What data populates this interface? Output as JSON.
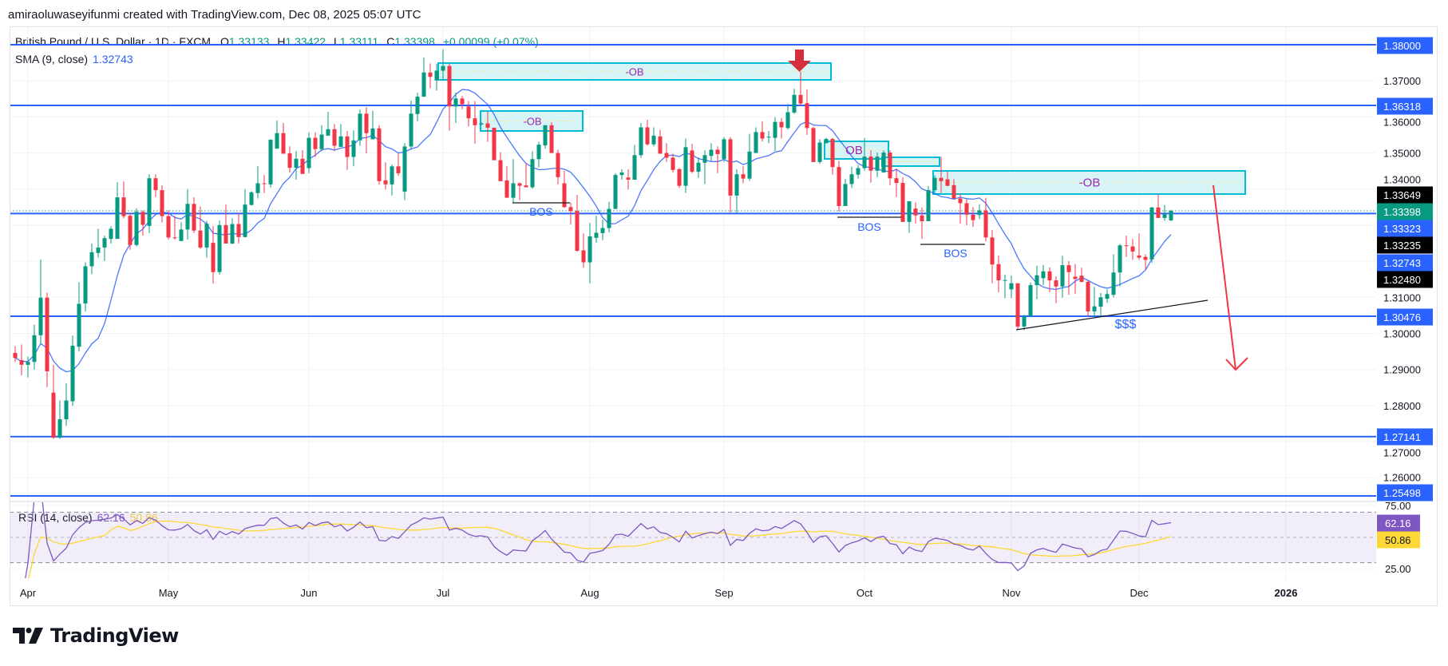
{
  "header": {
    "attribution": "amiraoluwaseyifunmi created with TradingView.com, Dec 08, 2025 05:07 UTC"
  },
  "legend": {
    "symbol": "British Pound / U.S. Dollar · 1D · FXCM",
    "open_label": "O",
    "open": "1.33133",
    "high_label": "H",
    "high": "1.33422",
    "low_label": "L",
    "low": "1.33111",
    "close_label": "C",
    "close": "1.33398",
    "change": "+0.00099 (+0.07%)",
    "sma_label": "SMA (9, close)",
    "sma_value": "1.32743"
  },
  "rsi_legend": {
    "label": "RSI (14, close)",
    "rsi": "62.16",
    "rsi_ma": "50.86"
  },
  "price_axis": {
    "ticks": [
      "1.37000",
      "1.36000",
      "1.35000",
      "1.34000",
      "1.31000",
      "1.30000",
      "1.29000",
      "1.28000",
      "1.27000",
      "1.26000"
    ],
    "badges": [
      {
        "value": "1.38000",
        "kind": "level"
      },
      {
        "value": "1.36318",
        "kind": "level"
      },
      {
        "value": "1.33649",
        "kind": "marker"
      },
      {
        "value": "1.33398",
        "kind": "last"
      },
      {
        "value": "1.33323",
        "kind": "level"
      },
      {
        "value": "1.33235",
        "kind": "marker"
      },
      {
        "value": "1.32743",
        "kind": "sma"
      },
      {
        "value": "1.32480",
        "kind": "marker"
      },
      {
        "value": "1.30476",
        "kind": "level"
      },
      {
        "value": "1.27141",
        "kind": "level"
      },
      {
        "value": "1.25498",
        "kind": "level"
      }
    ]
  },
  "rsi_axis": {
    "ticks": [
      "75.00",
      "25.00"
    ],
    "badges": [
      {
        "value": "62.16",
        "kind": "rsi"
      },
      {
        "value": "50.86",
        "kind": "rsi_ma"
      }
    ]
  },
  "time_axis": {
    "labels": [
      "Apr",
      "May",
      "Jun",
      "Jul",
      "Aug",
      "Sep",
      "Oct",
      "Nov",
      "Dec",
      "2026"
    ]
  },
  "annotations": {
    "ob_labels": [
      "-OB",
      "-OB",
      "OB",
      "",
      "-OB"
    ],
    "bos_labels": [
      "BOS",
      "BOS",
      "BOS"
    ],
    "liquidity_label": "$$$"
  },
  "logo": {
    "text": "TradingView"
  },
  "colors": {
    "up": "#089981",
    "down": "#f23645",
    "level_line": "#2962ff",
    "sma": "#2962ff",
    "rsi": "#7e57c2",
    "rsi_ma": "#fdd835",
    "ob_fill": "#d3f3f6",
    "ob_stroke": "#00bcd4",
    "ob_label": "#9c27b0",
    "bos_label": "#2962ff",
    "arrow": "#f23645",
    "marker_badge": "#000000"
  },
  "chart_data": {
    "type": "candlestick",
    "symbol": "British Pound / U.S. Dollar",
    "interval": "1D",
    "ohlc": [
      [
        1.2946,
        1.2965,
        1.2921,
        1.2932
      ],
      [
        1.2926,
        1.2969,
        1.2884,
        1.2913
      ],
      [
        1.2913,
        1.2936,
        1.2878,
        1.2921
      ],
      [
        1.2921,
        1.3024,
        1.29,
        1.2995
      ],
      [
        1.2995,
        1.3205,
        1.2969,
        1.3099
      ],
      [
        1.3099,
        1.3113,
        1.2851,
        1.2895
      ],
      [
        1.2836,
        1.2913,
        1.2708,
        1.2711
      ],
      [
        1.2711,
        1.2814,
        1.2708,
        1.2762
      ],
      [
        1.2762,
        1.2862,
        1.2744,
        1.2814
      ],
      [
        1.2812,
        1.2994,
        1.2799,
        1.2966
      ],
      [
        1.2963,
        1.3142,
        1.295,
        1.3082
      ],
      [
        1.3083,
        1.3197,
        1.3061,
        1.3186
      ],
      [
        1.3186,
        1.3249,
        1.3164,
        1.3225
      ],
      [
        1.3223,
        1.329,
        1.321,
        1.3238
      ],
      [
        1.3238,
        1.3271,
        1.3201,
        1.3264
      ],
      [
        1.3262,
        1.3297,
        1.3249,
        1.329
      ],
      [
        1.3262,
        1.3419,
        1.3262,
        1.3377
      ],
      [
        1.3377,
        1.3421,
        1.3319,
        1.3325
      ],
      [
        1.3326,
        1.3334,
        1.3232,
        1.3245
      ],
      [
        1.3245,
        1.3347,
        1.3241,
        1.3337
      ],
      [
        1.3337,
        1.3341,
        1.3271,
        1.3301
      ],
      [
        1.3298,
        1.3441,
        1.3278,
        1.343
      ],
      [
        1.343,
        1.3441,
        1.3378,
        1.3397
      ],
      [
        1.3397,
        1.3411,
        1.3308,
        1.3325
      ],
      [
        1.3325,
        1.3341,
        1.326,
        1.3266
      ],
      [
        1.3266,
        1.3326,
        1.326,
        1.3264
      ],
      [
        1.3256,
        1.3308,
        1.3256,
        1.3288
      ],
      [
        1.3288,
        1.34,
        1.326,
        1.3359
      ],
      [
        1.3359,
        1.3377,
        1.3278,
        1.3285
      ],
      [
        1.3285,
        1.3352,
        1.3234,
        1.3238
      ],
      [
        1.3238,
        1.3312,
        1.321,
        1.3304
      ],
      [
        1.3251,
        1.3297,
        1.3138,
        1.317
      ],
      [
        1.317,
        1.3313,
        1.3163,
        1.33
      ],
      [
        1.33,
        1.3357,
        1.3249,
        1.3249
      ],
      [
        1.3249,
        1.3319,
        1.3247,
        1.3303
      ],
      [
        1.3303,
        1.3334,
        1.3249,
        1.3267
      ],
      [
        1.3267,
        1.34,
        1.3266,
        1.3357
      ],
      [
        1.3356,
        1.3394,
        1.3354,
        1.3391
      ],
      [
        1.3389,
        1.3464,
        1.3374,
        1.3416
      ],
      [
        1.3416,
        1.3439,
        1.3389,
        1.3415
      ],
      [
        1.3413,
        1.3537,
        1.3404,
        1.3537
      ],
      [
        1.3512,
        1.359,
        1.3512,
        1.3555
      ],
      [
        1.3555,
        1.3583,
        1.3498,
        1.3498
      ],
      [
        1.3499,
        1.3518,
        1.3446,
        1.3459
      ],
      [
        1.3459,
        1.3506,
        1.3426,
        1.3484
      ],
      [
        1.3484,
        1.3508,
        1.3442,
        1.3442
      ],
      [
        1.3458,
        1.3557,
        1.3444,
        1.3542
      ],
      [
        1.3542,
        1.3557,
        1.3489,
        1.3511
      ],
      [
        1.3511,
        1.3577,
        1.3505,
        1.3551
      ],
      [
        1.3548,
        1.3614,
        1.3548,
        1.3566
      ],
      [
        1.3566,
        1.358,
        1.3505,
        1.352
      ],
      [
        1.3517,
        1.358,
        1.3517,
        1.3546
      ],
      [
        1.3546,
        1.3561,
        1.3453,
        1.3489
      ],
      [
        1.3489,
        1.3563,
        1.3463,
        1.3535
      ],
      [
        1.3535,
        1.362,
        1.352,
        1.3609
      ],
      [
        1.3609,
        1.3627,
        1.3499,
        1.3555
      ],
      [
        1.3538,
        1.3617,
        1.3538,
        1.3568
      ],
      [
        1.3568,
        1.3577,
        1.3412,
        1.3422
      ],
      [
        1.3424,
        1.3474,
        1.3399,
        1.3413
      ],
      [
        1.3413,
        1.3468,
        1.3382,
        1.3463
      ],
      [
        1.3463,
        1.3498,
        1.3437,
        1.3444
      ],
      [
        1.3393,
        1.3527,
        1.3369,
        1.3518
      ],
      [
        1.3518,
        1.3645,
        1.3509,
        1.3609
      ],
      [
        1.3608,
        1.3667,
        1.3588,
        1.3656
      ],
      [
        1.3656,
        1.3765,
        1.3656,
        1.3723
      ],
      [
        1.3723,
        1.3748,
        1.368,
        1.3711
      ],
      [
        1.3701,
        1.3747,
        1.3673,
        1.3728
      ],
      [
        1.3728,
        1.3787,
        1.3701,
        1.3741
      ],
      [
        1.3741,
        1.3748,
        1.3562,
        1.3629
      ],
      [
        1.3629,
        1.3667,
        1.3583,
        1.3651
      ],
      [
        1.3651,
        1.3658,
        1.3621,
        1.3635
      ],
      [
        1.3629,
        1.3644,
        1.3574,
        1.3596
      ],
      [
        1.3596,
        1.3644,
        1.3526,
        1.3577
      ],
      [
        1.3579,
        1.3585,
        1.3577,
        1.3582
      ],
      [
        1.3582,
        1.3614,
        1.3531,
        1.357
      ],
      [
        1.357,
        1.357,
        1.348,
        1.348
      ],
      [
        1.348,
        1.3502,
        1.3422,
        1.3422
      ],
      [
        1.3424,
        1.3463,
        1.3376,
        1.3376
      ],
      [
        1.3376,
        1.3483,
        1.3362,
        1.3416
      ],
      [
        1.3416,
        1.3418,
        1.337,
        1.3409
      ],
      [
        1.341,
        1.3472,
        1.3405,
        1.3405
      ],
      [
        1.3405,
        1.3505,
        1.3401,
        1.3483
      ],
      [
        1.3483,
        1.3531,
        1.346,
        1.3523
      ],
      [
        1.3521,
        1.3577,
        1.3512,
        1.3577
      ],
      [
        1.3577,
        1.3585,
        1.35,
        1.35
      ],
      [
        1.35,
        1.3509,
        1.3413,
        1.3433
      ],
      [
        1.3416,
        1.345,
        1.3348,
        1.335
      ],
      [
        1.335,
        1.3362,
        1.3302,
        1.3339
      ],
      [
        1.3339,
        1.3384,
        1.3227,
        1.3229
      ],
      [
        1.323,
        1.3277,
        1.3182,
        1.3197
      ],
      [
        1.3197,
        1.3306,
        1.3139,
        1.3269
      ],
      [
        1.3265,
        1.3326,
        1.3251,
        1.3279
      ],
      [
        1.3278,
        1.3315,
        1.3258,
        1.3292
      ],
      [
        1.3292,
        1.3365,
        1.328,
        1.3345
      ],
      [
        1.3345,
        1.3444,
        1.3345,
        1.3439
      ],
      [
        1.3439,
        1.3455,
        1.3426,
        1.3446
      ],
      [
        1.3432,
        1.3455,
        1.3399,
        1.3426
      ],
      [
        1.3426,
        1.3522,
        1.3426,
        1.3494
      ],
      [
        1.3494,
        1.3583,
        1.3487,
        1.3571
      ],
      [
        1.3571,
        1.3592,
        1.352,
        1.3524
      ],
      [
        1.3524,
        1.3571,
        1.3518,
        1.3548
      ],
      [
        1.3546,
        1.3564,
        1.3498,
        1.3498
      ],
      [
        1.35,
        1.3527,
        1.3475,
        1.3487
      ],
      [
        1.3487,
        1.3498,
        1.3446,
        1.3453
      ],
      [
        1.3455,
        1.3459,
        1.3403,
        1.3409
      ],
      [
        1.3409,
        1.354,
        1.3389,
        1.3516
      ],
      [
        1.3507,
        1.3525,
        1.3444,
        1.3448
      ],
      [
        1.3448,
        1.3488,
        1.3431,
        1.3473
      ],
      [
        1.3473,
        1.3507,
        1.3414,
        1.3494
      ],
      [
        1.3492,
        1.3527,
        1.3478,
        1.3509
      ],
      [
        1.3509,
        1.3518,
        1.3444,
        1.3497
      ],
      [
        1.3483,
        1.3544,
        1.3475,
        1.3538
      ],
      [
        1.3538,
        1.3544,
        1.3335,
        1.3382
      ],
      [
        1.3382,
        1.3455,
        1.3334,
        1.3441
      ],
      [
        1.3441,
        1.3463,
        1.3416,
        1.3429
      ],
      [
        1.3429,
        1.3553,
        1.3423,
        1.3504
      ],
      [
        1.35,
        1.3571,
        1.35,
        1.3558
      ],
      [
        1.3558,
        1.3588,
        1.3532,
        1.354
      ],
      [
        1.3543,
        1.3561,
        1.3527,
        1.3545
      ],
      [
        1.3542,
        1.3599,
        1.3506,
        1.3586
      ],
      [
        1.3586,
        1.3597,
        1.354,
        1.3571
      ],
      [
        1.3569,
        1.3636,
        1.3565,
        1.3613
      ],
      [
        1.3612,
        1.3678,
        1.3608,
        1.3661
      ],
      [
        1.3661,
        1.3725,
        1.363,
        1.3637
      ],
      [
        1.3638,
        1.3676,
        1.355,
        1.3569
      ],
      [
        1.3569,
        1.3573,
        1.3475,
        1.3475
      ],
      [
        1.3475,
        1.3538,
        1.347,
        1.3529
      ],
      [
        1.3527,
        1.3542,
        1.3527,
        1.3539
      ],
      [
        1.3539,
        1.3542,
        1.344,
        1.3461
      ],
      [
        1.3461,
        1.3478,
        1.3338,
        1.3353
      ],
      [
        1.3353,
        1.3428,
        1.3353,
        1.3414
      ],
      [
        1.3414,
        1.3462,
        1.3403,
        1.3441
      ],
      [
        1.344,
        1.3467,
        1.3429,
        1.3458
      ],
      [
        1.3458,
        1.3542,
        1.3451,
        1.349
      ],
      [
        1.349,
        1.3507,
        1.3418,
        1.3451
      ],
      [
        1.3451,
        1.3501,
        1.3433,
        1.349
      ],
      [
        1.3446,
        1.3507,
        1.3446,
        1.3501
      ],
      [
        1.3501,
        1.3507,
        1.3411,
        1.343
      ],
      [
        1.343,
        1.3457,
        1.3378,
        1.3417
      ],
      [
        1.3417,
        1.3433,
        1.3309,
        1.3309
      ],
      [
        1.3309,
        1.3367,
        1.3279,
        1.3366
      ],
      [
        1.3346,
        1.3363,
        1.3305,
        1.3327
      ],
      [
        1.3327,
        1.3349,
        1.3262,
        1.3311
      ],
      [
        1.3311,
        1.3408,
        1.3311,
        1.3397
      ],
      [
        1.3397,
        1.3438,
        1.3389,
        1.3431
      ],
      [
        1.3431,
        1.3489,
        1.3389,
        1.3422
      ],
      [
        1.3427,
        1.3448,
        1.3408,
        1.3409
      ],
      [
        1.3411,
        1.3427,
        1.3371,
        1.3374
      ],
      [
        1.3374,
        1.3387,
        1.3304,
        1.3361
      ],
      [
        1.3361,
        1.3372,
        1.33,
        1.3329
      ],
      [
        1.3329,
        1.335,
        1.3295,
        1.3314
      ],
      [
        1.3328,
        1.3358,
        1.3317,
        1.3341
      ],
      [
        1.3341,
        1.3376,
        1.3255,
        1.3266
      ],
      [
        1.3266,
        1.3287,
        1.3139,
        1.3191
      ],
      [
        1.3192,
        1.3216,
        1.3114,
        1.3147
      ],
      [
        1.3147,
        1.3163,
        1.3098,
        1.3148
      ],
      [
        1.3122,
        1.316,
        1.3098,
        1.3139
      ],
      [
        1.3139,
        1.3139,
        1.3009,
        1.3019
      ],
      [
        1.3019,
        1.3052,
        1.3009,
        1.3047
      ],
      [
        1.3047,
        1.3141,
        1.3047,
        1.3134
      ],
      [
        1.3134,
        1.3188,
        1.3095,
        1.3161
      ],
      [
        1.3153,
        1.319,
        1.3134,
        1.3172
      ],
      [
        1.3172,
        1.3183,
        1.3114,
        1.3147
      ],
      [
        1.3147,
        1.3158,
        1.3084,
        1.313
      ],
      [
        1.313,
        1.3215,
        1.3099,
        1.3189
      ],
      [
        1.3189,
        1.32,
        1.3107,
        1.317
      ],
      [
        1.3157,
        1.3192,
        1.3109,
        1.3151
      ],
      [
        1.316,
        1.3182,
        1.3141,
        1.3143
      ],
      [
        1.3143,
        1.3146,
        1.3046,
        1.3061
      ],
      [
        1.3061,
        1.3129,
        1.3046,
        1.3075
      ],
      [
        1.3074,
        1.3112,
        1.3046,
        1.31
      ],
      [
        1.3096,
        1.3122,
        1.3085,
        1.3109
      ],
      [
        1.3107,
        1.3219,
        1.31,
        1.3169
      ],
      [
        1.3169,
        1.3248,
        1.313,
        1.3244
      ],
      [
        1.3244,
        1.3271,
        1.3212,
        1.3242
      ],
      [
        1.3241,
        1.3262,
        1.3204,
        1.3227
      ],
      [
        1.3216,
        1.3277,
        1.3204,
        1.321
      ],
      [
        1.3212,
        1.3219,
        1.3178,
        1.3204
      ],
      [
        1.3205,
        1.3351,
        1.3196,
        1.3349
      ],
      [
        1.3349,
        1.3385,
        1.332,
        1.332
      ],
      [
        1.332,
        1.3356,
        1.3312,
        1.333
      ],
      [
        1.33133,
        1.33422,
        1.33111,
        1.33398
      ]
    ],
    "horizontal_levels": [
      1.38,
      1.36318,
      1.33323,
      1.30476,
      1.27141,
      1.25498
    ],
    "last_close": 1.33398,
    "price_range": [
      1.25,
      1.385
    ],
    "indicators": [
      {
        "name": "SMA (9, close)",
        "last": 1.32743
      },
      {
        "name": "RSI (14, close)",
        "last": 62.16,
        "ma_last": 50.86,
        "bands": [
          70,
          50,
          30
        ],
        "range": [
          20,
          80
        ]
      }
    ],
    "x_labels": [
      "Apr",
      "May",
      "Jun",
      "Jul",
      "Aug",
      "Sep",
      "Oct",
      "Nov",
      "Dec",
      "2026"
    ]
  }
}
